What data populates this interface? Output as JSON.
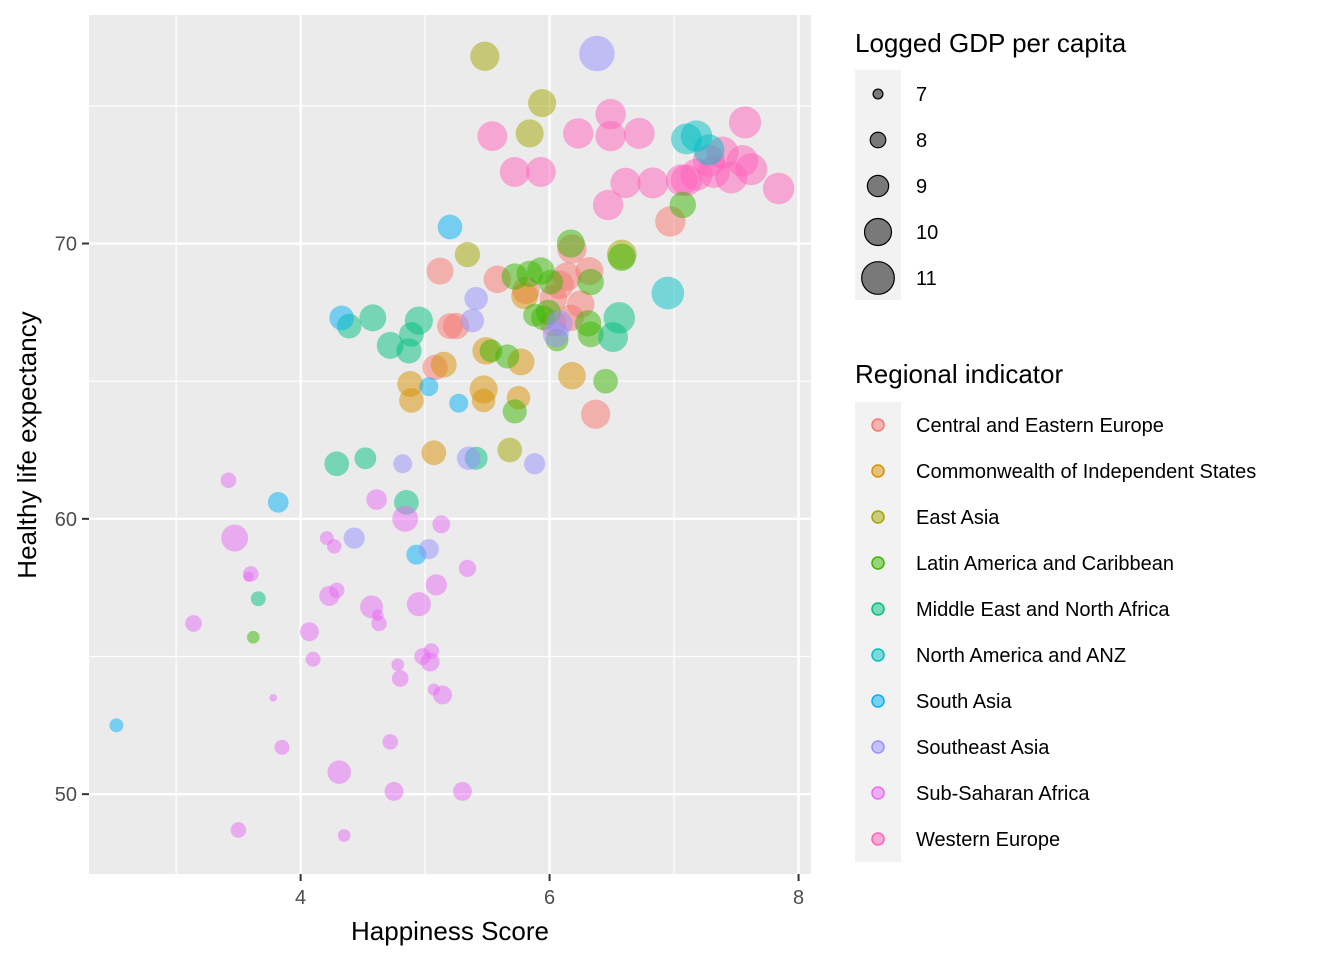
{
  "chart_data": {
    "type": "scatter",
    "title": "",
    "xlabel": "Happiness Score",
    "ylabel": "Healthy life expectancy",
    "xlim": [
      2.3,
      8.1
    ],
    "ylim": [
      47.1,
      78.3
    ],
    "xticks": [
      4,
      6,
      8
    ],
    "yticks": [
      50,
      60,
      70
    ],
    "x_minor": [
      3,
      5,
      7
    ],
    "y_minor": [
      55,
      65,
      75
    ],
    "grid": true,
    "legend_position": "right",
    "size_legend": {
      "title": "Logged GDP per capita",
      "values": [
        7,
        8,
        9,
        10,
        11
      ]
    },
    "color_legend": {
      "title": "Regional indicator",
      "categories": [
        {
          "name": "Central and Eastern Europe",
          "color": "#F8766D"
        },
        {
          "name": "Commonwealth of Independent States",
          "color": "#D89000"
        },
        {
          "name": "East Asia",
          "color": "#A3A500"
        },
        {
          "name": "Latin America and Caribbean",
          "color": "#39B600"
        },
        {
          "name": "Middle East and North Africa",
          "color": "#00BF7D"
        },
        {
          "name": "North America and ANZ",
          "color": "#00BFC4"
        },
        {
          "name": "South Asia",
          "color": "#00B0F6"
        },
        {
          "name": "Southeast Asia",
          "color": "#9590FF"
        },
        {
          "name": "Sub-Saharan Africa",
          "color": "#E76BF3"
        },
        {
          "name": "Western Europe",
          "color": "#FF62BC"
        }
      ]
    },
    "points": [
      {
        "region": "Western Europe",
        "x": 7.84,
        "y": 72.0,
        "gdp": 10.8
      },
      {
        "region": "Western Europe",
        "x": 7.62,
        "y": 72.7,
        "gdp": 10.9
      },
      {
        "region": "Western Europe",
        "x": 7.57,
        "y": 74.4,
        "gdp": 10.9
      },
      {
        "region": "Western Europe",
        "x": 7.55,
        "y": 73.0,
        "gdp": 10.8
      },
      {
        "region": "Western Europe",
        "x": 7.46,
        "y": 72.4,
        "gdp": 10.9
      },
      {
        "region": "Western Europe",
        "x": 7.39,
        "y": 73.3,
        "gdp": 10.9
      },
      {
        "region": "Western Europe",
        "x": 7.32,
        "y": 72.6,
        "gdp": 10.9
      },
      {
        "region": "Western Europe",
        "x": 7.28,
        "y": 73.0,
        "gdp": 10.9
      },
      {
        "region": "Western Europe",
        "x": 7.18,
        "y": 72.5,
        "gdp": 10.9
      },
      {
        "region": "Western Europe",
        "x": 7.1,
        "y": 72.3,
        "gdp": 10.8
      },
      {
        "region": "Western Europe",
        "x": 7.06,
        "y": 72.3,
        "gdp": 10.8
      },
      {
        "region": "Western Europe",
        "x": 6.83,
        "y": 72.2,
        "gdp": 10.7
      },
      {
        "region": "Western Europe",
        "x": 6.61,
        "y": 72.2,
        "gdp": 10.6
      },
      {
        "region": "Western Europe",
        "x": 6.72,
        "y": 74.0,
        "gdp": 10.7
      },
      {
        "region": "Western Europe",
        "x": 6.49,
        "y": 74.7,
        "gdp": 10.6
      },
      {
        "region": "Western Europe",
        "x": 6.49,
        "y": 73.9,
        "gdp": 10.6
      },
      {
        "region": "Western Europe",
        "x": 6.23,
        "y": 74.0,
        "gdp": 10.6
      },
      {
        "region": "Western Europe",
        "x": 6.47,
        "y": 71.4,
        "gdp": 10.6
      },
      {
        "region": "Western Europe",
        "x": 5.93,
        "y": 72.6,
        "gdp": 10.5
      },
      {
        "region": "Western Europe",
        "x": 5.72,
        "y": 72.6,
        "gdp": 10.5
      },
      {
        "region": "Western Europe",
        "x": 5.54,
        "y": 73.9,
        "gdp": 10.5
      },
      {
        "region": "North America and ANZ",
        "x": 7.18,
        "y": 73.9,
        "gdp": 10.8
      },
      {
        "region": "North America and ANZ",
        "x": 7.1,
        "y": 73.8,
        "gdp": 10.7
      },
      {
        "region": "North America and ANZ",
        "x": 7.28,
        "y": 73.4,
        "gdp": 10.7
      },
      {
        "region": "North America and ANZ",
        "x": 6.95,
        "y": 68.2,
        "gdp": 11.0
      },
      {
        "region": "Central and Eastern Europe",
        "x": 6.97,
        "y": 70.8,
        "gdp": 10.6
      },
      {
        "region": "Central and Eastern Europe",
        "x": 6.37,
        "y": 63.8,
        "gdp": 10.4
      },
      {
        "region": "Central and Eastern Europe",
        "x": 6.18,
        "y": 69.8,
        "gdp": 10.4
      },
      {
        "region": "Central and Eastern Europe",
        "x": 6.14,
        "y": 68.8,
        "gdp": 10.3
      },
      {
        "region": "Central and Eastern Europe",
        "x": 6.08,
        "y": 68.5,
        "gdp": 10.3
      },
      {
        "region": "Central and Eastern Europe",
        "x": 6.03,
        "y": 68.0,
        "gdp": 10.1
      },
      {
        "region": "Central and Eastern Europe",
        "x": 6.25,
        "y": 67.8,
        "gdp": 10.1
      },
      {
        "region": "Central and Eastern Europe",
        "x": 6.17,
        "y": 67.3,
        "gdp": 9.9
      },
      {
        "region": "Central and Eastern Europe",
        "x": 6.03,
        "y": 67.1,
        "gdp": 9.9
      },
      {
        "region": "Central and Eastern Europe",
        "x": 5.81,
        "y": 68.3,
        "gdp": 10.1
      },
      {
        "region": "Central and Eastern Europe",
        "x": 5.58,
        "y": 68.7,
        "gdp": 10.1
      },
      {
        "region": "Central and Eastern Europe",
        "x": 5.12,
        "y": 69.0,
        "gdp": 10.0
      },
      {
        "region": "Central and Eastern Europe",
        "x": 5.2,
        "y": 67.0,
        "gdp": 9.8
      },
      {
        "region": "Central and Eastern Europe",
        "x": 5.25,
        "y": 67.0,
        "gdp": 9.9
      },
      {
        "region": "Central and Eastern Europe",
        "x": 5.08,
        "y": 65.5,
        "gdp": 9.7
      },
      {
        "region": "Central and Eastern Europe",
        "x": 6.32,
        "y": 69.0,
        "gdp": 10.2
      },
      {
        "region": "Commonwealth of Independent States",
        "x": 6.18,
        "y": 65.2,
        "gdp": 10.1
      },
      {
        "region": "Commonwealth of Independent States",
        "x": 5.77,
        "y": 65.7,
        "gdp": 10.0
      },
      {
        "region": "Commonwealth of Independent States",
        "x": 5.49,
        "y": 66.1,
        "gdp": 10.1
      },
      {
        "region": "Commonwealth of Independent States",
        "x": 5.47,
        "y": 64.7,
        "gdp": 10.2
      },
      {
        "region": "Commonwealth of Independent States",
        "x": 5.47,
        "y": 64.3,
        "gdp": 9.4
      },
      {
        "region": "Commonwealth of Independent States",
        "x": 5.75,
        "y": 64.4,
        "gdp": 9.4
      },
      {
        "region": "Commonwealth of Independent States",
        "x": 5.15,
        "y": 65.6,
        "gdp": 9.8
      },
      {
        "region": "Commonwealth of Independent States",
        "x": 4.88,
        "y": 64.9,
        "gdp": 9.8
      },
      {
        "region": "Commonwealth of Independent States",
        "x": 4.89,
        "y": 64.3,
        "gdp": 9.6
      },
      {
        "region": "Commonwealth of Independent States",
        "x": 5.07,
        "y": 62.4,
        "gdp": 9.6
      },
      {
        "region": "Commonwealth of Independent States",
        "x": 5.8,
        "y": 68.1,
        "gdp": 10.0
      },
      {
        "region": "East Asia",
        "x": 5.48,
        "y": 76.8,
        "gdp": 10.4
      },
      {
        "region": "East Asia",
        "x": 5.94,
        "y": 75.1,
        "gdp": 10.2
      },
      {
        "region": "East Asia",
        "x": 5.84,
        "y": 74.0,
        "gdp": 10.2
      },
      {
        "region": "East Asia",
        "x": 6.58,
        "y": 69.6,
        "gdp": 10.5
      },
      {
        "region": "East Asia",
        "x": 5.34,
        "y": 69.6,
        "gdp": 9.7
      },
      {
        "region": "East Asia",
        "x": 5.68,
        "y": 62.5,
        "gdp": 9.6
      },
      {
        "region": "Latin America and Caribbean",
        "x": 7.07,
        "y": 71.4,
        "gdp": 9.9
      },
      {
        "region": "Latin America and Caribbean",
        "x": 6.17,
        "y": 70.0,
        "gdp": 10.2
      },
      {
        "region": "Latin America and Caribbean",
        "x": 6.58,
        "y": 69.5,
        "gdp": 10.1
      },
      {
        "region": "Latin America and Caribbean",
        "x": 6.33,
        "y": 68.6,
        "gdp": 9.9
      },
      {
        "region": "Latin America and Caribbean",
        "x": 6.31,
        "y": 67.1,
        "gdp": 9.9
      },
      {
        "region": "Latin America and Caribbean",
        "x": 6.01,
        "y": 68.6,
        "gdp": 9.6
      },
      {
        "region": "Latin America and Caribbean",
        "x": 5.93,
        "y": 69.0,
        "gdp": 10.1
      },
      {
        "region": "Latin America and Caribbean",
        "x": 5.84,
        "y": 68.9,
        "gdp": 9.9
      },
      {
        "region": "Latin America and Caribbean",
        "x": 5.72,
        "y": 68.8,
        "gdp": 9.9
      },
      {
        "region": "Latin America and Caribbean",
        "x": 5.99,
        "y": 67.5,
        "gdp": 9.7
      },
      {
        "region": "Latin America and Caribbean",
        "x": 5.95,
        "y": 67.3,
        "gdp": 9.6
      },
      {
        "region": "Latin America and Caribbean",
        "x": 5.88,
        "y": 67.4,
        "gdp": 9.3
      },
      {
        "region": "Latin America and Caribbean",
        "x": 6.06,
        "y": 66.5,
        "gdp": 9.3
      },
      {
        "region": "Latin America and Caribbean",
        "x": 6.33,
        "y": 66.7,
        "gdp": 9.8
      },
      {
        "region": "Latin America and Caribbean",
        "x": 5.53,
        "y": 66.1,
        "gdp": 9.3
      },
      {
        "region": "Latin America and Caribbean",
        "x": 5.66,
        "y": 65.9,
        "gdp": 9.5
      },
      {
        "region": "Latin America and Caribbean",
        "x": 6.45,
        "y": 65.0,
        "gdp": 9.6
      },
      {
        "region": "Latin America and Caribbean",
        "x": 5.72,
        "y": 63.9,
        "gdp": 9.5
      },
      {
        "region": "Latin America and Caribbean",
        "x": 3.62,
        "y": 55.7,
        "gdp": 7.5
      },
      {
        "region": "Middle East and North Africa",
        "x": 6.56,
        "y": 67.3,
        "gdp": 10.8
      },
      {
        "region": "Middle East and North Africa",
        "x": 6.51,
        "y": 66.6,
        "gdp": 10.5
      },
      {
        "region": "Middle East and North Africa",
        "x": 4.95,
        "y": 67.2,
        "gdp": 10.2
      },
      {
        "region": "Middle East and North Africa",
        "x": 4.58,
        "y": 67.3,
        "gdp": 10.0
      },
      {
        "region": "Middle East and North Africa",
        "x": 4.39,
        "y": 67.0,
        "gdp": 9.6
      },
      {
        "region": "Middle East and North Africa",
        "x": 4.72,
        "y": 66.3,
        "gdp": 10.0
      },
      {
        "region": "Middle East and North Africa",
        "x": 4.89,
        "y": 66.7,
        "gdp": 9.6
      },
      {
        "region": "Middle East and North Africa",
        "x": 4.87,
        "y": 66.1,
        "gdp": 9.7
      },
      {
        "region": "Middle East and North Africa",
        "x": 5.41,
        "y": 62.2,
        "gdp": 9.3
      },
      {
        "region": "Middle East and North Africa",
        "x": 4.52,
        "y": 62.2,
        "gdp": 9.1
      },
      {
        "region": "Middle East and North Africa",
        "x": 4.29,
        "y": 62.0,
        "gdp": 9.6
      },
      {
        "region": "Middle East and North Africa",
        "x": 4.85,
        "y": 60.6,
        "gdp": 9.6
      },
      {
        "region": "Middle East and North Africa",
        "x": 3.66,
        "y": 57.1,
        "gdp": 7.9
      },
      {
        "region": "South Asia",
        "x": 5.2,
        "y": 70.6,
        "gdp": 9.6
      },
      {
        "region": "South Asia",
        "x": 4.33,
        "y": 67.3,
        "gdp": 9.6
      },
      {
        "region": "South Asia",
        "x": 5.03,
        "y": 64.8,
        "gdp": 8.6
      },
      {
        "region": "South Asia",
        "x": 5.27,
        "y": 64.2,
        "gdp": 8.6
      },
      {
        "region": "South Asia",
        "x": 3.82,
        "y": 60.6,
        "gdp": 8.9
      },
      {
        "region": "South Asia",
        "x": 4.93,
        "y": 58.7,
        "gdp": 8.8
      },
      {
        "region": "South Asia",
        "x": 2.52,
        "y": 52.5,
        "gdp": 7.7
      },
      {
        "region": "Southeast Asia",
        "x": 6.38,
        "y": 76.9,
        "gdp": 11.5
      },
      {
        "region": "Southeast Asia",
        "x": 5.41,
        "y": 68.0,
        "gdp": 9.4
      },
      {
        "region": "Southeast Asia",
        "x": 5.38,
        "y": 67.2,
        "gdp": 9.4
      },
      {
        "region": "Southeast Asia",
        "x": 6.08,
        "y": 67.1,
        "gdp": 9.8
      },
      {
        "region": "Southeast Asia",
        "x": 6.05,
        "y": 66.7,
        "gdp": 9.8
      },
      {
        "region": "Southeast Asia",
        "x": 5.35,
        "y": 62.2,
        "gdp": 9.4
      },
      {
        "region": "Southeast Asia",
        "x": 5.88,
        "y": 62.0,
        "gdp": 9.0
      },
      {
        "region": "Southeast Asia",
        "x": 4.82,
        "y": 62.0,
        "gdp": 8.6
      },
      {
        "region": "Southeast Asia",
        "x": 4.43,
        "y": 59.3,
        "gdp": 9.0
      },
      {
        "region": "Southeast Asia",
        "x": 5.03,
        "y": 58.9,
        "gdp": 8.8
      },
      {
        "region": "Sub-Saharan Africa",
        "x": 3.42,
        "y": 61.4,
        "gdp": 8.0
      },
      {
        "region": "Sub-Saharan Africa",
        "x": 3.47,
        "y": 59.3,
        "gdp": 10.0
      },
      {
        "region": "Sub-Saharan Africa",
        "x": 4.61,
        "y": 60.7,
        "gdp": 8.9
      },
      {
        "region": "Sub-Saharan Africa",
        "x": 4.84,
        "y": 60.0,
        "gdp": 9.8
      },
      {
        "region": "Sub-Saharan Africa",
        "x": 5.13,
        "y": 59.8,
        "gdp": 8.4
      },
      {
        "region": "Sub-Saharan Africa",
        "x": 4.21,
        "y": 59.3,
        "gdp": 7.7
      },
      {
        "region": "Sub-Saharan Africa",
        "x": 4.27,
        "y": 59.0,
        "gdp": 7.8
      },
      {
        "region": "Sub-Saharan Africa",
        "x": 3.6,
        "y": 58.0,
        "gdp": 8.0
      },
      {
        "region": "Sub-Saharan Africa",
        "x": 3.58,
        "y": 57.9,
        "gdp": 7.1
      },
      {
        "region": "Sub-Saharan Africa",
        "x": 5.34,
        "y": 58.2,
        "gdp": 8.3
      },
      {
        "region": "Sub-Saharan Africa",
        "x": 5.09,
        "y": 57.6,
        "gdp": 9.0
      },
      {
        "region": "Sub-Saharan Africa",
        "x": 4.29,
        "y": 57.4,
        "gdp": 8.0
      },
      {
        "region": "Sub-Saharan Africa",
        "x": 4.23,
        "y": 57.2,
        "gdp": 8.8
      },
      {
        "region": "Sub-Saharan Africa",
        "x": 4.57,
        "y": 56.8,
        "gdp": 9.3
      },
      {
        "region": "Sub-Saharan Africa",
        "x": 4.95,
        "y": 56.9,
        "gdp": 9.5
      },
      {
        "region": "Sub-Saharan Africa",
        "x": 4.62,
        "y": 56.5,
        "gdp": 7.3
      },
      {
        "region": "Sub-Saharan Africa",
        "x": 4.63,
        "y": 56.2,
        "gdp": 8.0
      },
      {
        "region": "Sub-Saharan Africa",
        "x": 3.14,
        "y": 56.2,
        "gdp": 8.2
      },
      {
        "region": "Sub-Saharan Africa",
        "x": 4.07,
        "y": 55.9,
        "gdp": 8.6
      },
      {
        "region": "Sub-Saharan Africa",
        "x": 5.05,
        "y": 55.2,
        "gdp": 8.0
      },
      {
        "region": "Sub-Saharan Africa",
        "x": 4.98,
        "y": 55.0,
        "gdp": 8.2
      },
      {
        "region": "Sub-Saharan Africa",
        "x": 5.04,
        "y": 54.8,
        "gdp": 8.6
      },
      {
        "region": "Sub-Saharan Africa",
        "x": 4.1,
        "y": 54.9,
        "gdp": 7.9
      },
      {
        "region": "Sub-Saharan Africa",
        "x": 4.78,
        "y": 54.7,
        "gdp": 7.5
      },
      {
        "region": "Sub-Saharan Africa",
        "x": 4.8,
        "y": 54.2,
        "gdp": 8.2
      },
      {
        "region": "Sub-Saharan Africa",
        "x": 5.07,
        "y": 53.8,
        "gdp": 7.4
      },
      {
        "region": "Sub-Saharan Africa",
        "x": 5.14,
        "y": 53.6,
        "gdp": 8.6
      },
      {
        "region": "Sub-Saharan Africa",
        "x": 3.78,
        "y": 53.5,
        "gdp": 6.6
      },
      {
        "region": "Sub-Saharan Africa",
        "x": 4.72,
        "y": 51.9,
        "gdp": 8.0
      },
      {
        "region": "Sub-Saharan Africa",
        "x": 3.85,
        "y": 51.7,
        "gdp": 7.9
      },
      {
        "region": "Sub-Saharan Africa",
        "x": 4.31,
        "y": 50.8,
        "gdp": 9.4
      },
      {
        "region": "Sub-Saharan Africa",
        "x": 4.75,
        "y": 50.1,
        "gdp": 8.6
      },
      {
        "region": "Sub-Saharan Africa",
        "x": 5.3,
        "y": 50.1,
        "gdp": 8.6
      },
      {
        "region": "Sub-Saharan Africa",
        "x": 3.5,
        "y": 48.7,
        "gdp": 8.0
      },
      {
        "region": "Sub-Saharan Africa",
        "x": 4.35,
        "y": 48.5,
        "gdp": 7.5
      }
    ]
  }
}
